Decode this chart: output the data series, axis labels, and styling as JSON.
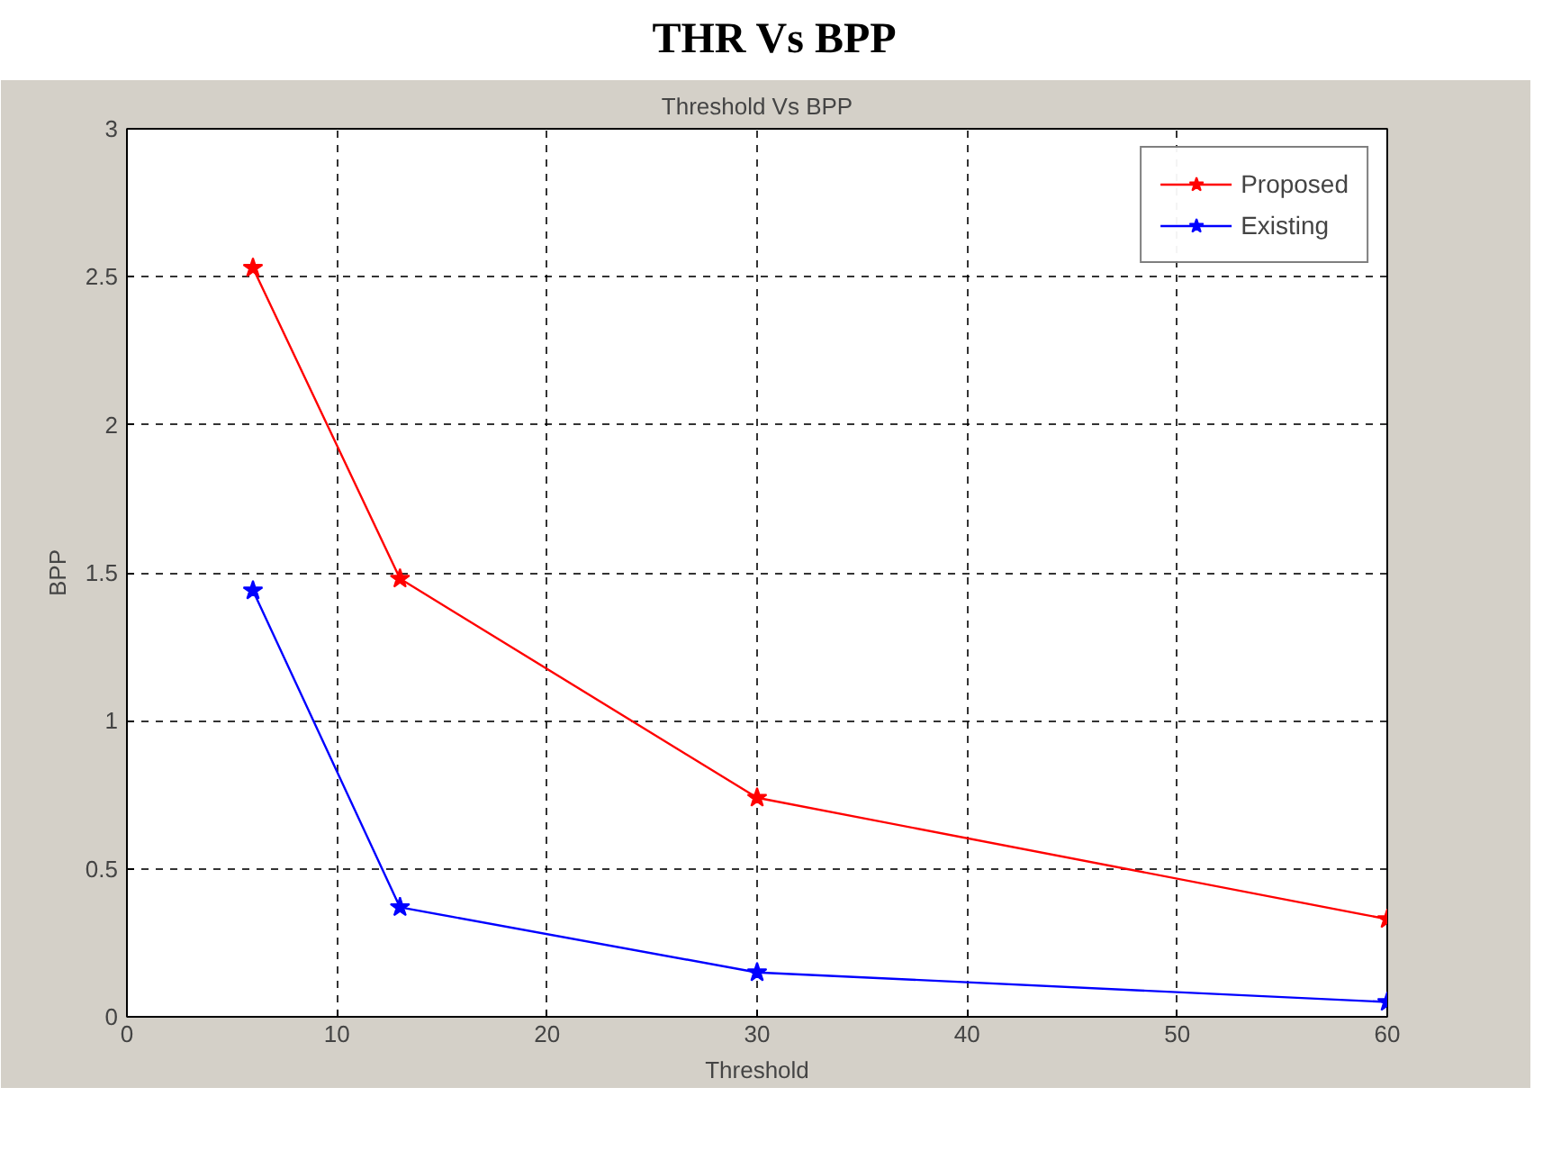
{
  "chart_data": {
    "type": "line",
    "title": "THR Vs BPP",
    "subtitle": "Threshold Vs BPP",
    "xlabel": "Threshold",
    "ylabel": "BPP",
    "series": [
      {
        "name": "Proposed",
        "color": "#ff0000",
        "x": [
          6,
          13,
          30,
          60
        ],
        "values": [
          2.53,
          1.48,
          0.74,
          0.33
        ]
      },
      {
        "name": "Existing",
        "color": "#0000ff",
        "x": [
          6,
          13,
          30,
          60
        ],
        "values": [
          1.44,
          0.37,
          0.15,
          0.05
        ]
      }
    ],
    "xlim": [
      0,
      60
    ],
    "xticks": [
      0,
      10,
      20,
      30,
      40,
      50,
      60
    ],
    "ylim": [
      0,
      3
    ],
    "yticks": [
      0,
      0.5,
      1,
      1.5,
      2,
      2.5,
      3
    ],
    "grid": true,
    "legend": "top right",
    "marker": "star",
    "line_style": "solid"
  }
}
